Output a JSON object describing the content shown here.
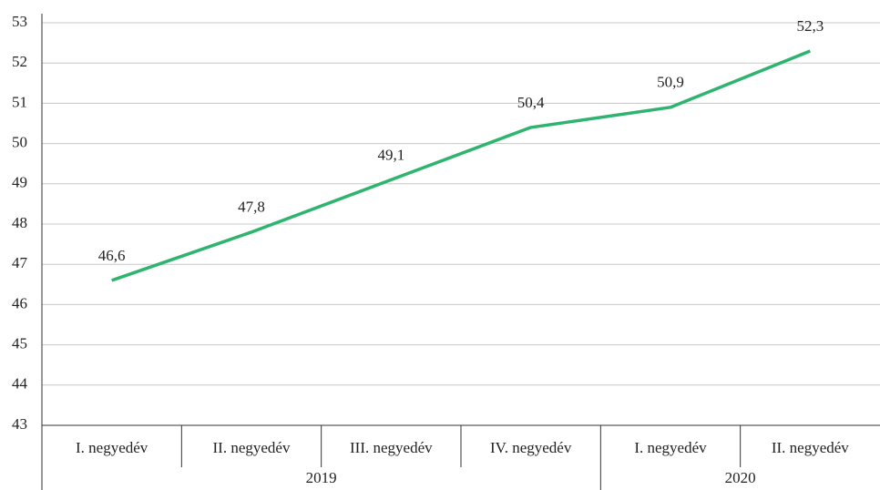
{
  "chart_data": {
    "type": "line",
    "categories": [
      "I. negyedév",
      "II. negyedév",
      "III. negyedév",
      "IV. negyedév",
      "I. negyedév",
      "II. negyedév"
    ],
    "groups": [
      "2019",
      "2019",
      "2019",
      "2019",
      "2020",
      "2020"
    ],
    "values": [
      46.6,
      47.8,
      49.1,
      50.4,
      50.9,
      52.3
    ],
    "value_labels": [
      "46,6",
      "47,8",
      "49,1",
      "50,4",
      "50,9",
      "52,3"
    ],
    "color": "#2eb46e",
    "ylim": [
      43,
      53
    ],
    "yticks": [
      43,
      44,
      45,
      46,
      47,
      48,
      49,
      50,
      51,
      52,
      53
    ],
    "grid": true
  }
}
